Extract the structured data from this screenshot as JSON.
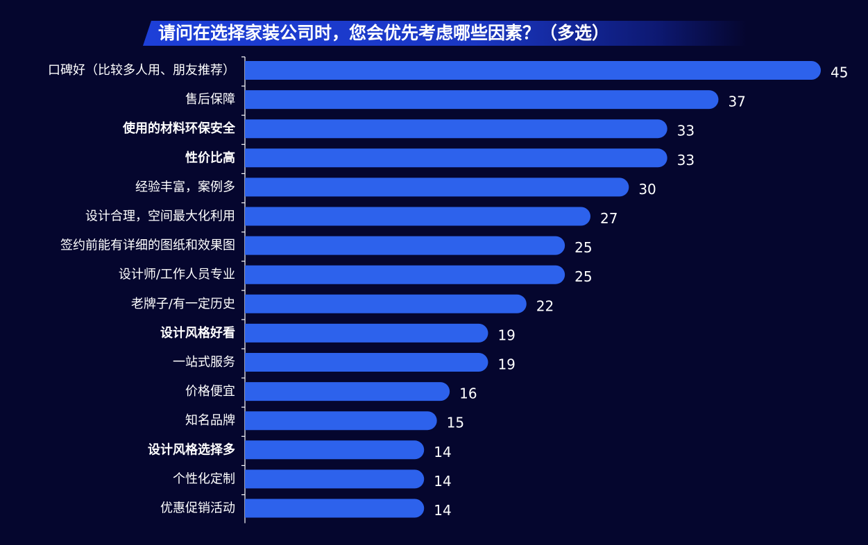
{
  "chart_data": {
    "type": "bar",
    "orientation": "horizontal",
    "title": "请问在选择家装公司时，您会优先考虑哪些因素？（多选）",
    "categories": [
      "口碑好（比较多人用、朋友推荐）",
      "售后保障",
      "使用的材料环保安全",
      "性价比高",
      "经验丰富，案例多",
      "设计合理，空间最大化利用",
      "签约前能有详细的图纸和效果图",
      "设计师/工作人员专业",
      "老牌子/有一定历史",
      "设计风格好看",
      "一站式服务",
      "价格便宜",
      "知名品牌",
      "设计风格选择多",
      "个性化定制",
      "优惠促销活动"
    ],
    "values": [
      45,
      37,
      33,
      33,
      30,
      27,
      25,
      25,
      22,
      19,
      19,
      16,
      15,
      14,
      14,
      14
    ],
    "bold_categories": [
      "使用的材料环保安全",
      "性价比高",
      "设计风格好看",
      "设计风格选择多"
    ],
    "bar_color": "#2d62ec",
    "background_color": "#05062e",
    "title_banner_color": "#1d3fd8",
    "grid": false,
    "legend": "none"
  }
}
